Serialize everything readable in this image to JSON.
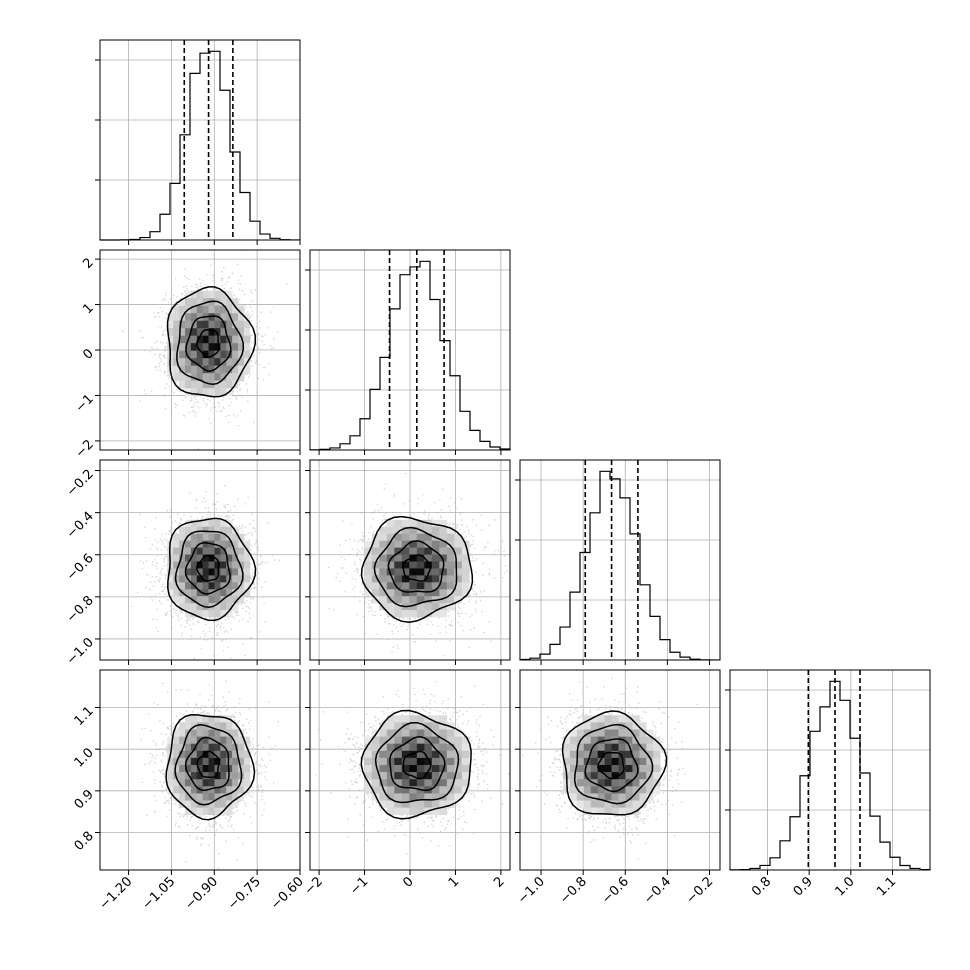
{
  "chart_data": {
    "type": "corner",
    "parameters": [
      {
        "range": [
          -1.3,
          -0.6
        ],
        "ticks": [
          -1.2,
          -1.05,
          -0.9,
          -0.75,
          -0.6
        ],
        "tick_labels": [
          "−1.20",
          "−1.05",
          "−0.90",
          "−0.75",
          "−0.60"
        ],
        "mean": -0.92,
        "sigma": 0.075,
        "quantiles": [
          -1.005,
          -0.92,
          -0.835
        ]
      },
      {
        "range": [
          -2.2,
          2.2
        ],
        "ticks": [
          -2,
          -1,
          0,
          1,
          2
        ],
        "tick_labels": [
          "−2",
          "−1",
          "0",
          "1",
          "2"
        ],
        "mean": 0.15,
        "sigma": 0.6,
        "quantiles": [
          -0.45,
          0.15,
          0.75
        ]
      },
      {
        "range": [
          -1.1,
          -0.15
        ],
        "ticks": [
          -1.0,
          -0.8,
          -0.6,
          -0.4,
          -0.2
        ],
        "tick_labels": [
          "−1.0",
          "−0.8",
          "−0.6",
          "−0.4",
          "−0.2"
        ],
        "mean": -0.665,
        "sigma": 0.12,
        "quantiles": [
          -0.79,
          -0.665,
          -0.54
        ]
      },
      {
        "range": [
          0.71,
          1.19
        ],
        "ticks": [
          0.8,
          0.9,
          1.0,
          1.1
        ],
        "tick_labels": [
          "0.8",
          "0.9",
          "1.0",
          "1.1"
        ],
        "mean": 0.962,
        "sigma": 0.062,
        "quantiles": [
          0.898,
          0.962,
          1.022
        ]
      }
    ],
    "histogram_bins": 20,
    "contour_levels_sigma": [
      0.5,
      1.0,
      1.5,
      2.0
    ],
    "grid": true,
    "colors": {
      "line": "#000000",
      "scatter": "#bdbdbd",
      "grid": "#b0b0b0"
    }
  }
}
